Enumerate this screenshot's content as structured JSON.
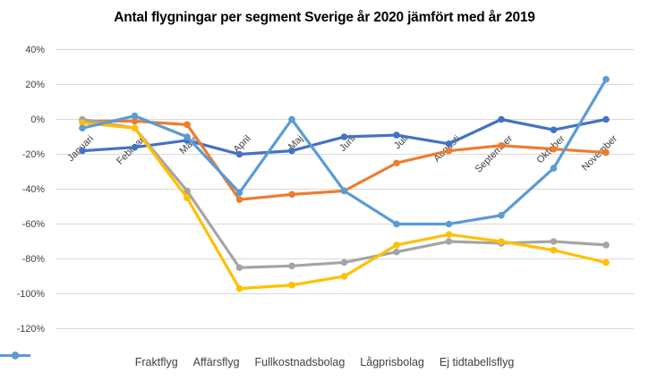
{
  "title": "Antal flygningar per segment Sverige år 2020 jämfört med år 2019",
  "chart_data": {
    "type": "line",
    "title": "Antal flygningar per segment Sverige år 2020 jämfört med år 2019",
    "categories": [
      "Januari",
      "Februari",
      "Mars",
      "April",
      "Maj",
      "Juni",
      "Juli",
      "Augusti",
      "September",
      "Oktober",
      "November"
    ],
    "series": [
      {
        "name": "Fraktflyg",
        "color": "#4472C4",
        "values": [
          -18,
          -16,
          -12,
          -20,
          -18,
          -10,
          -9,
          -14,
          0,
          -6,
          0
        ]
      },
      {
        "name": "Affärsflyg",
        "color": "#ED7D31",
        "values": [
          -1,
          -1,
          -3,
          -46,
          -43,
          -41,
          -25,
          -18,
          -15,
          -17,
          -19
        ]
      },
      {
        "name": "Fullkostnadsbolag",
        "color": "#A5A5A5",
        "values": [
          0,
          -5,
          -41,
          -85,
          -84,
          -82,
          -76,
          -70,
          -71,
          -70,
          -72
        ]
      },
      {
        "name": "Lågprisbolag",
        "color": "#FFC000",
        "values": [
          -2,
          -5,
          -45,
          -97,
          -95,
          -90,
          -72,
          -66,
          -70,
          -75,
          -82
        ]
      },
      {
        "name": "Ej tidtabellsflyg",
        "color": "#5B9BD5",
        "values": [
          -5,
          2,
          -10,
          -42,
          0,
          -41,
          -60,
          -60,
          -55,
          -28,
          23
        ]
      }
    ],
    "ylim": [
      -120,
      40
    ],
    "ytick_step": 20,
    "yticks": [
      {
        "value": 40,
        "label": "40%"
      },
      {
        "value": 20,
        "label": "20%"
      },
      {
        "value": 0,
        "label": "0%"
      },
      {
        "value": -20,
        "label": "-20%"
      },
      {
        "value": -40,
        "label": "-40%"
      },
      {
        "value": -60,
        "label": "-60%"
      },
      {
        "value": -80,
        "label": "-80%"
      },
      {
        "value": -100,
        "label": "-100%"
      },
      {
        "value": -120,
        "label": "-120%"
      }
    ],
    "grid": true,
    "grid_color": "#D9D9D9",
    "label_color": "#404040",
    "legend_position": "bottom"
  }
}
